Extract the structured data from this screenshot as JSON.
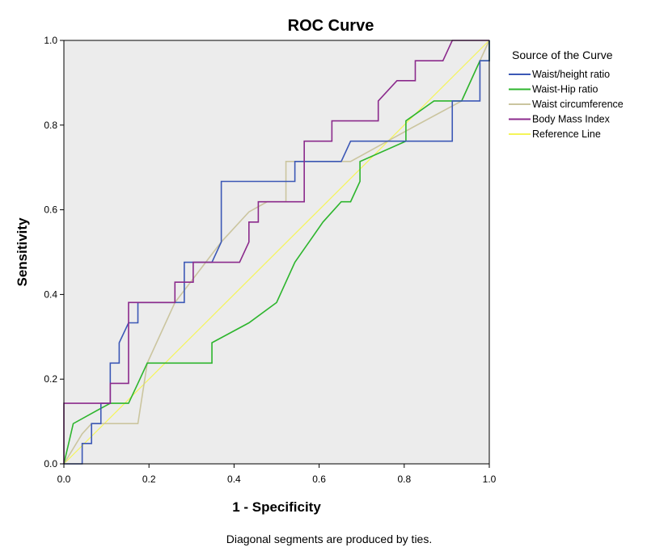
{
  "chart_data": {
    "type": "line",
    "title": "ROC Curve",
    "xlabel": "1 - Specificity",
    "ylabel": "Sensitivity",
    "xlim": [
      0,
      1
    ],
    "ylim": [
      0,
      1
    ],
    "xticks": [
      "0.0",
      "0.2",
      "0.4",
      "0.6",
      "0.8",
      "1.0"
    ],
    "yticks": [
      "0.0",
      "0.2",
      "0.4",
      "0.6",
      "0.8",
      "1.0"
    ],
    "grid": false,
    "background": "#ececec",
    "legend": {
      "title": "Source of the Curve",
      "placement": "right"
    },
    "footnote": "Diagonal segments are produced by ties.",
    "series": [
      {
        "name": "Waist/height ratio",
        "color": "#3c58b6",
        "points": [
          [
            0,
            0
          ],
          [
            0.043,
            0
          ],
          [
            0.043,
            0.048
          ],
          [
            0.065,
            0.048
          ],
          [
            0.065,
            0.095
          ],
          [
            0.087,
            0.095
          ],
          [
            0.087,
            0.143
          ],
          [
            0.109,
            0.143
          ],
          [
            0.109,
            0.238
          ],
          [
            0.13,
            0.238
          ],
          [
            0.13,
            0.286
          ],
          [
            0.152,
            0.333
          ],
          [
            0.174,
            0.333
          ],
          [
            0.174,
            0.381
          ],
          [
            0.283,
            0.381
          ],
          [
            0.283,
            0.476
          ],
          [
            0.348,
            0.476
          ],
          [
            0.37,
            0.524
          ],
          [
            0.37,
            0.667
          ],
          [
            0.543,
            0.667
          ],
          [
            0.543,
            0.714
          ],
          [
            0.652,
            0.714
          ],
          [
            0.674,
            0.762
          ],
          [
            0.913,
            0.762
          ],
          [
            0.913,
            0.857
          ],
          [
            0.978,
            0.857
          ],
          [
            0.978,
            0.952
          ],
          [
            1,
            0.952
          ],
          [
            1,
            1
          ]
        ]
      },
      {
        "name": "Waist-Hip ratio",
        "color": "#2db52d",
        "points": [
          [
            0,
            0
          ],
          [
            0.022,
            0.095
          ],
          [
            0.065,
            0.119
          ],
          [
            0.109,
            0.143
          ],
          [
            0.152,
            0.143
          ],
          [
            0.174,
            0.19
          ],
          [
            0.196,
            0.238
          ],
          [
            0.348,
            0.238
          ],
          [
            0.348,
            0.286
          ],
          [
            0.435,
            0.333
          ],
          [
            0.5,
            0.381
          ],
          [
            0.543,
            0.476
          ],
          [
            0.609,
            0.571
          ],
          [
            0.652,
            0.619
          ],
          [
            0.674,
            0.619
          ],
          [
            0.696,
            0.667
          ],
          [
            0.696,
            0.714
          ],
          [
            0.804,
            0.762
          ],
          [
            0.804,
            0.81
          ],
          [
            0.87,
            0.857
          ],
          [
            0.935,
            0.857
          ],
          [
            0.978,
            0.952
          ],
          [
            1,
            0.952
          ],
          [
            1,
            1
          ]
        ]
      },
      {
        "name": "Waist circumference",
        "color": "#cbc59f",
        "points": [
          [
            0,
            0
          ],
          [
            0.043,
            0.071
          ],
          [
            0.065,
            0.095
          ],
          [
            0.174,
            0.095
          ],
          [
            0.196,
            0.238
          ],
          [
            0.261,
            0.381
          ],
          [
            0.37,
            0.524
          ],
          [
            0.435,
            0.595
          ],
          [
            0.478,
            0.619
          ],
          [
            0.522,
            0.619
          ],
          [
            0.522,
            0.714
          ],
          [
            0.674,
            0.714
          ],
          [
            0.804,
            0.786
          ],
          [
            0.935,
            0.857
          ],
          [
            0.978,
            0.952
          ],
          [
            1,
            1
          ]
        ]
      },
      {
        "name": "Body Mass Index",
        "color": "#8b2a8c",
        "points": [
          [
            0,
            0
          ],
          [
            0,
            0.143
          ],
          [
            0.109,
            0.143
          ],
          [
            0.109,
            0.19
          ],
          [
            0.152,
            0.19
          ],
          [
            0.152,
            0.381
          ],
          [
            0.261,
            0.381
          ],
          [
            0.261,
            0.429
          ],
          [
            0.304,
            0.429
          ],
          [
            0.304,
            0.476
          ],
          [
            0.413,
            0.476
          ],
          [
            0.435,
            0.524
          ],
          [
            0.435,
            0.571
          ],
          [
            0.457,
            0.571
          ],
          [
            0.457,
            0.619
          ],
          [
            0.565,
            0.619
          ],
          [
            0.565,
            0.667
          ],
          [
            0.565,
            0.762
          ],
          [
            0.63,
            0.762
          ],
          [
            0.63,
            0.81
          ],
          [
            0.739,
            0.81
          ],
          [
            0.739,
            0.857
          ],
          [
            0.783,
            0.905
          ],
          [
            0.826,
            0.905
          ],
          [
            0.826,
            0.952
          ],
          [
            0.891,
            0.952
          ],
          [
            0.913,
            1
          ],
          [
            1,
            1
          ]
        ]
      },
      {
        "name": "Reference Line",
        "color": "#f5f558",
        "points": [
          [
            0,
            0
          ],
          [
            1,
            1
          ]
        ]
      }
    ]
  }
}
